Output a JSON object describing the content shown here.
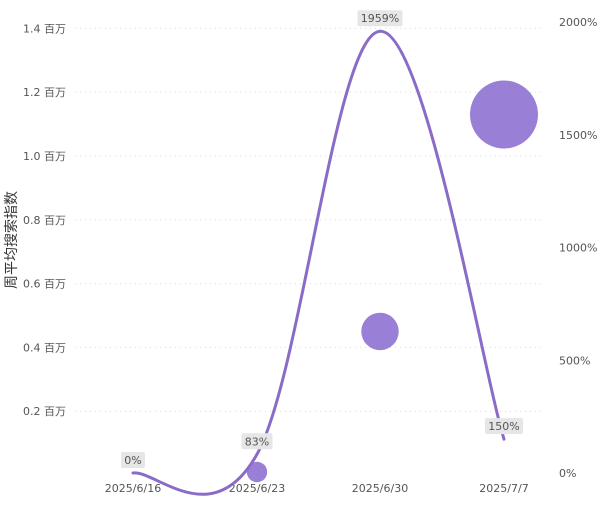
{
  "chart_data": {
    "type": "line+bubble",
    "categories": [
      "2025/6/16",
      "2025/6/23",
      "2025/6/30",
      "2025/7/7"
    ],
    "ylabel": "周平均搜索指数",
    "left_axis": {
      "ticks": [
        {
          "value": 0.2,
          "label": "0.2 百万"
        },
        {
          "value": 0.4,
          "label": "0.4 百万"
        },
        {
          "value": 0.6,
          "label": "0.6 百万"
        },
        {
          "value": 0.8,
          "label": "0.8 百万"
        },
        {
          "value": 1.0,
          "label": "1.0 百万"
        },
        {
          "value": 1.2,
          "label": "1.2 百万"
        },
        {
          "value": 1.4,
          "label": "1.4 百万"
        }
      ],
      "min": 0.0,
      "max": 1.42
    },
    "right_axis": {
      "ticks": [
        {
          "value": 0,
          "label": "0%"
        },
        {
          "value": 500,
          "label": "500%"
        },
        {
          "value": 1000,
          "label": "1000%"
        },
        {
          "value": 1500,
          "label": "1500%"
        },
        {
          "value": 2000,
          "label": "2000%"
        }
      ],
      "min": 0,
      "max": 2000
    },
    "line_series": {
      "values": [
        0,
        83,
        1959,
        150
      ],
      "labels": [
        "0%",
        "83%",
        "1959%",
        "150%"
      ]
    },
    "bubble_series": {
      "values": [
        0.0,
        0.0,
        0.45,
        1.13
      ],
      "relative_size": [
        0.0,
        0.3,
        0.55,
        1.0
      ]
    },
    "grid": true,
    "colors": {
      "line": "#8a6cc8",
      "bubble": "#9a7fd6",
      "label_bg": "#e6e6e6",
      "grid": "#d9d9d9"
    }
  }
}
